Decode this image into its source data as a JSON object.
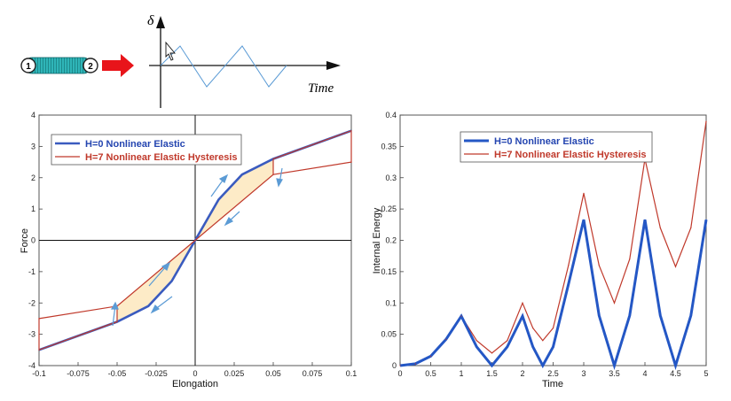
{
  "schematic": {
    "node1": "1",
    "node2": "2",
    "delta_symbol": "δ",
    "time_label": "Time",
    "colors": {
      "spring": "#2fb5b8",
      "arrow": "#e8141a",
      "signal": "#5b9bd5"
    }
  },
  "chart_data": [
    {
      "type": "line",
      "title": "",
      "xlabel": "Elongation",
      "ylabel": "Force",
      "xlim": [
        -0.1,
        0.1
      ],
      "ylim": [
        -4,
        4
      ],
      "xticks": [
        "-0.1",
        "-0.075",
        "-0.05",
        "-0.025",
        "0",
        "0.025",
        "0.05",
        "0.075",
        "0.1"
      ],
      "yticks": [
        "4",
        "3",
        "2",
        "1",
        "0",
        "-1",
        "-2",
        "-3",
        "-4"
      ],
      "legend_position": "top-left",
      "series": [
        {
          "name": "H=0  Nonlinear Elastic",
          "color": "#3a5bbf",
          "points": [
            [
              -0.1,
              -3.5
            ],
            [
              -0.05,
              -2.6
            ],
            [
              -0.03,
              -2.1
            ],
            [
              -0.015,
              -1.3
            ],
            [
              0,
              0
            ],
            [
              0.015,
              1.3
            ],
            [
              0.03,
              2.1
            ],
            [
              0.05,
              2.6
            ],
            [
              0.1,
              3.5
            ]
          ]
        },
        {
          "name": "H=7  Nonlinear Elastic Hysteresis",
          "color": "#c0392b",
          "points": [
            [
              -0.1,
              -2.5
            ],
            [
              -0.1,
              -3.5
            ],
            [
              -0.05,
              -2.6
            ],
            [
              -0.05,
              -2.1
            ],
            [
              0,
              0
            ],
            [
              0.05,
              2.1
            ],
            [
              0.05,
              2.6
            ],
            [
              0.1,
              3.5
            ],
            [
              0.1,
              2.5
            ],
            [
              0.05,
              2.1
            ],
            [
              0,
              0
            ],
            [
              -0.05,
              -2.1
            ],
            [
              -0.1,
              -2.5
            ]
          ]
        }
      ]
    },
    {
      "type": "line",
      "title": "",
      "xlabel": "Time",
      "ylabel": "Internal Energy",
      "xlim": [
        0,
        5
      ],
      "ylim": [
        0,
        0.4
      ],
      "xticks": [
        "0",
        "0.5",
        "1",
        "1.5",
        "2",
        "2.5",
        "3",
        "3.5",
        "4",
        "4.5",
        "5"
      ],
      "yticks": [
        "0.4",
        "0.35",
        "0.3",
        "0.25",
        "0.2",
        "0.15",
        "0.1",
        "0.05",
        "0"
      ],
      "legend_position": "top-left",
      "series": [
        {
          "name": "H=0  Nonlinear Elastic",
          "color": "#2457c5",
          "points": [
            [
              0,
              0
            ],
            [
              0.25,
              0.003
            ],
            [
              0.5,
              0.015
            ],
            [
              0.75,
              0.042
            ],
            [
              1,
              0.079
            ],
            [
              1.25,
              0.03
            ],
            [
              1.5,
              0
            ],
            [
              1.75,
              0.03
            ],
            [
              2,
              0.079
            ],
            [
              2.17,
              0.03
            ],
            [
              2.33,
              0
            ],
            [
              2.5,
              0.03
            ],
            [
              2.75,
              0.13
            ],
            [
              3,
              0.233
            ],
            [
              3.25,
              0.08
            ],
            [
              3.5,
              0
            ],
            [
              3.75,
              0.08
            ],
            [
              4,
              0.233
            ],
            [
              4.25,
              0.08
            ],
            [
              4.5,
              0
            ],
            [
              4.75,
              0.08
            ],
            [
              5,
              0.233
            ]
          ]
        },
        {
          "name": "H=7  Nonlinear Elastic Hysteresis",
          "color": "#c0392b",
          "points": [
            [
              0,
              0
            ],
            [
              0.25,
              0.003
            ],
            [
              0.5,
              0.015
            ],
            [
              0.75,
              0.042
            ],
            [
              1,
              0.079
            ],
            [
              1.25,
              0.04
            ],
            [
              1.5,
              0.02
            ],
            [
              1.75,
              0.04
            ],
            [
              2,
              0.1
            ],
            [
              2.17,
              0.06
            ],
            [
              2.33,
              0.04
            ],
            [
              2.5,
              0.06
            ],
            [
              2.75,
              0.16
            ],
            [
              3,
              0.275
            ],
            [
              3.25,
              0.16
            ],
            [
              3.5,
              0.1
            ],
            [
              3.75,
              0.17
            ],
            [
              4,
              0.33
            ],
            [
              4.25,
              0.22
            ],
            [
              4.5,
              0.158
            ],
            [
              4.75,
              0.22
            ],
            [
              5,
              0.39
            ]
          ]
        }
      ]
    }
  ]
}
